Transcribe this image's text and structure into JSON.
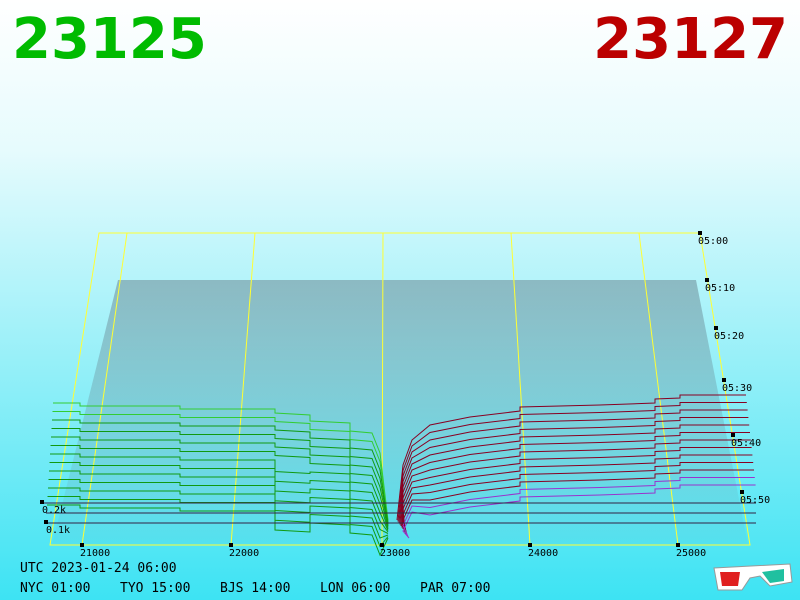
{
  "header": {
    "bid": "23125",
    "ask": "23127"
  },
  "price_labels": [
    "21000",
    "22000",
    "23000",
    "24000",
    "25000"
  ],
  "time_labels": [
    "05:00",
    "05:10",
    "05:20",
    "05:30",
    "05:40",
    "05:50"
  ],
  "qty_labels": [
    "0.2k",
    "0.1k"
  ],
  "footer": {
    "utc": "UTC 2023-01-24 06:00",
    "zones": [
      "NYC 01:00",
      "TYO 15:00",
      "BJS 14:00",
      "LON 06:00",
      "PAR 07:00"
    ]
  }
}
